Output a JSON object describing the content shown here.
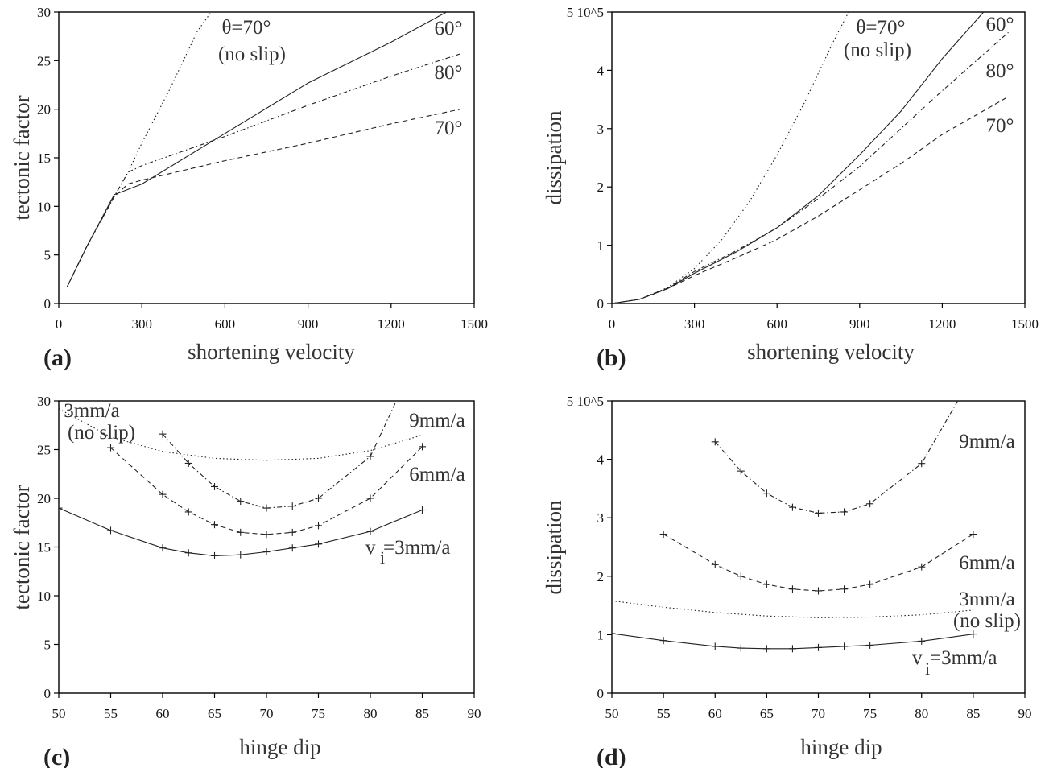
{
  "chart_data": [
    {
      "panel_label": "(a)",
      "type": "line",
      "xlabel": "shortening velocity",
      "ylabel": "tectonic factor",
      "xlim": [
        0,
        1500
      ],
      "ylim": [
        0,
        30
      ],
      "xticks": [
        "0",
        "300",
        "600",
        "900",
        "1200",
        "1500"
      ],
      "yticks": [
        "0",
        "5",
        "10",
        "15",
        "20",
        "25",
        "30"
      ],
      "grid": false,
      "series": [
        {
          "name": "60°",
          "style": "solid",
          "x": [
            30,
            100,
            200,
            300,
            600,
            900,
            1200,
            1400
          ],
          "y": [
            1.7,
            5.8,
            11.2,
            12.3,
            17.5,
            22.7,
            26.9,
            30.0
          ]
        },
        {
          "name": "80°",
          "style": "dashdot",
          "x": [
            30,
            100,
            200,
            250,
            300,
            600,
            900,
            1200,
            1450
          ],
          "y": [
            1.7,
            5.8,
            11.0,
            13.5,
            14.2,
            17.2,
            20.4,
            23.4,
            25.7
          ]
        },
        {
          "name": "70°",
          "style": "dashed",
          "x": [
            30,
            100,
            200,
            250,
            300,
            600,
            900,
            1200,
            1450
          ],
          "y": [
            1.7,
            5.8,
            11.0,
            12.3,
            12.7,
            14.7,
            16.5,
            18.5,
            20.0
          ]
        },
        {
          "name": "θ=70° (no slip)",
          "style": "dotted",
          "x": [
            30,
            100,
            200,
            250,
            300,
            400,
            500,
            550
          ],
          "y": [
            1.7,
            5.8,
            11.0,
            13.5,
            16.5,
            22.0,
            28.0,
            30.0
          ]
        }
      ],
      "annotations": [
        {
          "text": "θ=70°",
          "series": 3
        },
        {
          "text": "(no slip)",
          "series": 3
        },
        {
          "text": "60°",
          "series": 0
        },
        {
          "text": "80°",
          "series": 1
        },
        {
          "text": "70°",
          "series": 2
        }
      ]
    },
    {
      "panel_label": "(b)",
      "type": "line",
      "xlabel": "shortening velocity",
      "ylabel": "dissipation",
      "xlim": [
        0,
        1500
      ],
      "ylim": [
        0,
        5
      ],
      "xticks": [
        "0",
        "300",
        "600",
        "900",
        "1200",
        "1500"
      ],
      "yticks": [
        "0",
        "1",
        "2",
        "3",
        "4",
        "5 10^5"
      ],
      "grid": false,
      "series": [
        {
          "name": "60°",
          "style": "solid",
          "x": [
            0,
            100,
            200,
            300,
            450,
            600,
            750,
            900,
            1050,
            1200,
            1350
          ],
          "y": [
            0.0,
            0.07,
            0.25,
            0.52,
            0.88,
            1.3,
            1.85,
            2.55,
            3.3,
            4.2,
            5.0
          ]
        },
        {
          "name": "80°",
          "style": "dashdot",
          "x": [
            0,
            100,
            200,
            300,
            450,
            600,
            750,
            900,
            1050,
            1200,
            1440
          ],
          "y": [
            0.0,
            0.07,
            0.26,
            0.55,
            0.9,
            1.3,
            1.8,
            2.35,
            3.0,
            3.65,
            4.65
          ]
        },
        {
          "name": "70°",
          "style": "dashed",
          "x": [
            0,
            100,
            200,
            300,
            450,
            600,
            750,
            900,
            1050,
            1200,
            1440
          ],
          "y": [
            0.0,
            0.07,
            0.25,
            0.48,
            0.78,
            1.1,
            1.5,
            1.95,
            2.4,
            2.9,
            3.55
          ]
        },
        {
          "name": "θ=70° (no slip)",
          "style": "dotted",
          "x": [
            0,
            100,
            200,
            300,
            400,
            500,
            600,
            700,
            800,
            860
          ],
          "y": [
            0.0,
            0.07,
            0.27,
            0.6,
            1.1,
            1.75,
            2.55,
            3.45,
            4.45,
            5.0
          ]
        }
      ],
      "annotations": [
        {
          "text": "θ=70°",
          "series": 3
        },
        {
          "text": "(no slip)",
          "series": 3
        },
        {
          "text": "60°",
          "series": 0
        },
        {
          "text": "80°",
          "series": 1
        },
        {
          "text": "70°",
          "series": 2
        }
      ]
    },
    {
      "panel_label": "(c)",
      "type": "line",
      "xlabel": "hinge dip",
      "ylabel": "tectonic factor",
      "xlim": [
        50,
        90
      ],
      "ylim": [
        0,
        30
      ],
      "xticks": [
        "50",
        "55",
        "60",
        "65",
        "70",
        "75",
        "80",
        "85",
        "90"
      ],
      "yticks": [
        "0",
        "5",
        "10",
        "15",
        "20",
        "25",
        "30"
      ],
      "grid": false,
      "series": [
        {
          "name": "v i =3mm/a",
          "style": "solid",
          "markers": true,
          "x": [
            50,
            55,
            60,
            62.5,
            65,
            67.5,
            70,
            72.5,
            75,
            80,
            85
          ],
          "y": [
            19.0,
            16.7,
            14.9,
            14.4,
            14.1,
            14.2,
            14.5,
            14.9,
            15.3,
            16.6,
            18.8
          ]
        },
        {
          "name": "6mm/a",
          "style": "dashed",
          "markers": true,
          "x": [
            55,
            60,
            62.5,
            65,
            67.5,
            70,
            72.5,
            75,
            80,
            85
          ],
          "y": [
            25.2,
            20.4,
            18.6,
            17.3,
            16.5,
            16.3,
            16.5,
            17.2,
            20.0,
            25.3
          ]
        },
        {
          "name": "9mm/a",
          "style": "dashdot",
          "markers": true,
          "x": [
            60,
            62.5,
            65,
            67.5,
            70,
            72.5,
            75,
            80,
            82.5
          ],
          "y": [
            26.6,
            23.6,
            21.2,
            19.7,
            19.0,
            19.2,
            20.0,
            24.3,
            30.0
          ]
        },
        {
          "name": "3mm/a (no slip)",
          "style": "dotted",
          "markers": false,
          "x": [
            50,
            55,
            60,
            65,
            70,
            75,
            80,
            85
          ],
          "y": [
            29.2,
            26.3,
            24.8,
            24.1,
            23.9,
            24.1,
            24.9,
            26.5
          ]
        }
      ],
      "annotations": [
        {
          "text": "3mm/a",
          "series": 3
        },
        {
          "text": "(no slip)",
          "series": 3
        },
        {
          "text": "9mm/a",
          "series": 2
        },
        {
          "text": "6mm/a",
          "series": 1
        },
        {
          "text": "v",
          "series": 0
        },
        {
          "text": "i",
          "series": 0
        },
        {
          "text": "=3mm/a",
          "series": 0
        }
      ]
    },
    {
      "panel_label": "(d)",
      "type": "line",
      "xlabel": "hinge dip",
      "ylabel": "dissipation",
      "xlim": [
        50,
        90
      ],
      "ylim": [
        0,
        5
      ],
      "xticks": [
        "50",
        "55",
        "60",
        "65",
        "70",
        "75",
        "80",
        "85",
        "90"
      ],
      "yticks": [
        "0",
        "1",
        "2",
        "3",
        "4",
        "5 10^5"
      ],
      "grid": false,
      "series": [
        {
          "name": "v i =3mm/a",
          "style": "solid",
          "markers": true,
          "x": [
            50,
            55,
            60,
            62.5,
            65,
            67.5,
            70,
            72.5,
            75,
            80,
            85
          ],
          "y": [
            1.02,
            0.9,
            0.8,
            0.77,
            0.76,
            0.76,
            0.78,
            0.8,
            0.82,
            0.89,
            1.01
          ]
        },
        {
          "name": "6mm/a",
          "style": "dashed",
          "markers": true,
          "x": [
            55,
            60,
            62.5,
            65,
            67.5,
            70,
            72.5,
            75,
            80,
            85
          ],
          "y": [
            2.72,
            2.2,
            2.0,
            1.86,
            1.78,
            1.75,
            1.78,
            1.86,
            2.16,
            2.72
          ]
        },
        {
          "name": "9mm/a",
          "style": "dashdot",
          "markers": true,
          "x": [
            60,
            62.5,
            65,
            67.5,
            70,
            72.5,
            75,
            80,
            83.5
          ],
          "y": [
            4.3,
            3.8,
            3.42,
            3.18,
            3.08,
            3.1,
            3.24,
            3.93,
            5.0
          ]
        },
        {
          "name": "3mm/a (no slip)",
          "style": "dotted",
          "markers": false,
          "x": [
            50,
            55,
            60,
            65,
            70,
            75,
            80,
            85
          ],
          "y": [
            1.58,
            1.47,
            1.38,
            1.32,
            1.29,
            1.3,
            1.34,
            1.42
          ]
        }
      ],
      "annotations": [
        {
          "text": "9mm/a",
          "series": 2
        },
        {
          "text": "6mm/a",
          "series": 1
        },
        {
          "text": "3mm/a",
          "series": 3
        },
        {
          "text": "(no slip)",
          "series": 3
        },
        {
          "text": "v",
          "series": 0
        },
        {
          "text": "i",
          "series": 0
        },
        {
          "text": "=3mm/a",
          "series": 0
        }
      ]
    }
  ]
}
